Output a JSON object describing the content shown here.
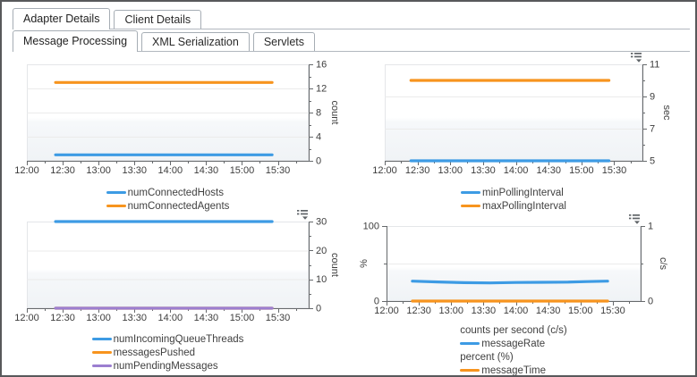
{
  "window": {
    "border_color": "#58595b",
    "background": "#ffffff"
  },
  "primary_tabs": {
    "items": [
      {
        "label": "Adapter Details",
        "selected": true
      },
      {
        "label": "Client Details",
        "selected": false
      }
    ]
  },
  "secondary_tabs": {
    "items": [
      {
        "label": "Message Processing",
        "selected": true
      },
      {
        "label": "XML Serialization",
        "selected": false
      },
      {
        "label": "Servlets",
        "selected": false
      }
    ]
  },
  "palette": {
    "series_blue": "#3d9be4",
    "series_orange": "#f7941e",
    "series_purple": "#9b7ed0",
    "axis": "#66696c",
    "grid": "#ebebeb",
    "plot_border": "#e4e6e9",
    "tick_text": "#3d3d3d",
    "legend_text": "#3f3f3f",
    "menu_icon": "#5f6468",
    "tab_border": "#a6adb4",
    "window_border": "#58595b"
  },
  "time_axis": {
    "tick_labels": [
      "12:00",
      "12:30",
      "13:00",
      "13:30",
      "14:00",
      "14:30",
      "15:00",
      "15:30"
    ],
    "start_hour": 12,
    "end_hour": 15.93,
    "major_step_hours": 0.5,
    "minor_step_hours": 0.25,
    "data_start_hour": 12.4,
    "data_end_hour": 15.42
  },
  "chart_data": [
    {
      "id": "connections",
      "type": "line",
      "title": "",
      "xlabel": "",
      "ylabel": "count",
      "has_menu_icon": false,
      "y_axes": {
        "right": {
          "label": "count",
          "min": 0,
          "max": 16,
          "major_ticks": [
            0,
            4,
            8,
            12,
            16
          ],
          "minor_ticks": [
            2,
            6,
            10,
            14
          ]
        }
      },
      "series": [
        {
          "name": "numConnectedHosts",
          "color": "series_blue",
          "axis": "right",
          "points": [
            [
              12.4,
              1
            ],
            [
              15.42,
              1
            ]
          ]
        },
        {
          "name": "numConnectedAgents",
          "color": "series_orange",
          "axis": "right",
          "points": [
            [
              12.4,
              13
            ],
            [
              15.42,
              13
            ]
          ]
        }
      ],
      "legend": [
        {
          "type": "item",
          "label": "numConnectedHosts",
          "color": "series_blue"
        },
        {
          "type": "item",
          "label": "numConnectedAgents",
          "color": "series_orange"
        }
      ]
    },
    {
      "id": "polling",
      "type": "line",
      "title": "",
      "xlabel": "",
      "ylabel": "sec",
      "has_menu_icon": true,
      "y_axes": {
        "right": {
          "label": "sec",
          "min": 5,
          "max": 11,
          "major_ticks": [
            5,
            7,
            9,
            11
          ],
          "minor_ticks": [
            6,
            8,
            10
          ]
        }
      },
      "series": [
        {
          "name": "minPollingInterval",
          "color": "series_blue",
          "axis": "right",
          "points": [
            [
              12.4,
              5
            ],
            [
              15.42,
              5
            ]
          ]
        },
        {
          "name": "maxPollingInterval",
          "color": "series_orange",
          "axis": "right",
          "points": [
            [
              12.4,
              10
            ],
            [
              15.42,
              10
            ]
          ]
        }
      ],
      "legend": [
        {
          "type": "item",
          "label": "minPollingInterval",
          "color": "series_blue"
        },
        {
          "type": "item",
          "label": "maxPollingInterval",
          "color": "series_orange"
        }
      ]
    },
    {
      "id": "queue",
      "type": "line",
      "title": "",
      "xlabel": "",
      "ylabel": "count",
      "has_menu_icon": true,
      "y_axes": {
        "right": {
          "label": "count",
          "min": 0,
          "max": 30,
          "major_ticks": [
            0,
            10,
            20,
            30
          ],
          "minor_ticks": [
            5,
            15,
            25
          ]
        }
      },
      "series": [
        {
          "name": "numIncomingQueueThreads",
          "color": "series_blue",
          "axis": "right",
          "points": [
            [
              12.4,
              30
            ],
            [
              15.42,
              30
            ]
          ]
        },
        {
          "name": "messagesPushed",
          "color": "series_orange",
          "axis": "right",
          "points": [
            [
              12.4,
              0
            ],
            [
              15.42,
              0
            ]
          ]
        },
        {
          "name": "numPendingMessages",
          "color": "series_purple",
          "axis": "right",
          "points": [
            [
              12.4,
              0
            ],
            [
              15.42,
              0
            ]
          ]
        }
      ],
      "legend": [
        {
          "type": "item",
          "label": "numIncomingQueueThreads",
          "color": "series_blue"
        },
        {
          "type": "item",
          "label": "messagesPushed",
          "color": "series_orange"
        },
        {
          "type": "item",
          "label": "numPendingMessages",
          "color": "series_purple"
        }
      ]
    },
    {
      "id": "rates",
      "type": "line",
      "title": "",
      "xlabel": "",
      "ylabel": "% / c/s",
      "has_menu_icon": true,
      "y_axes": {
        "left": {
          "label": "%",
          "min": 0,
          "max": 100,
          "major_ticks": [
            0,
            100
          ],
          "minor_ticks": [
            50
          ]
        },
        "right": {
          "label": "c/s",
          "min": 0,
          "max": 1,
          "major_ticks": [
            0,
            1
          ],
          "minor_ticks": [
            0.5
          ]
        }
      },
      "series": [
        {
          "name": "messageRate",
          "color": "series_blue",
          "axis": "right",
          "points": [
            [
              12.4,
              0.265
            ],
            [
              12.8,
              0.255
            ],
            [
              13.2,
              0.245
            ],
            [
              13.6,
              0.242
            ],
            [
              14.0,
              0.248
            ],
            [
              14.4,
              0.25
            ],
            [
              14.8,
              0.252
            ],
            [
              15.1,
              0.26
            ],
            [
              15.42,
              0.265
            ]
          ]
        },
        {
          "name": "messageTime",
          "color": "series_orange",
          "axis": "left",
          "points": [
            [
              12.4,
              0
            ],
            [
              15.42,
              0
            ]
          ]
        }
      ],
      "legend": [
        {
          "type": "header",
          "label": "counts per second (c/s)"
        },
        {
          "type": "item",
          "label": "messageRate",
          "color": "series_blue"
        },
        {
          "type": "header",
          "label": "percent (%)"
        },
        {
          "type": "item",
          "label": "messageTime",
          "color": "series_orange"
        }
      ]
    }
  ]
}
